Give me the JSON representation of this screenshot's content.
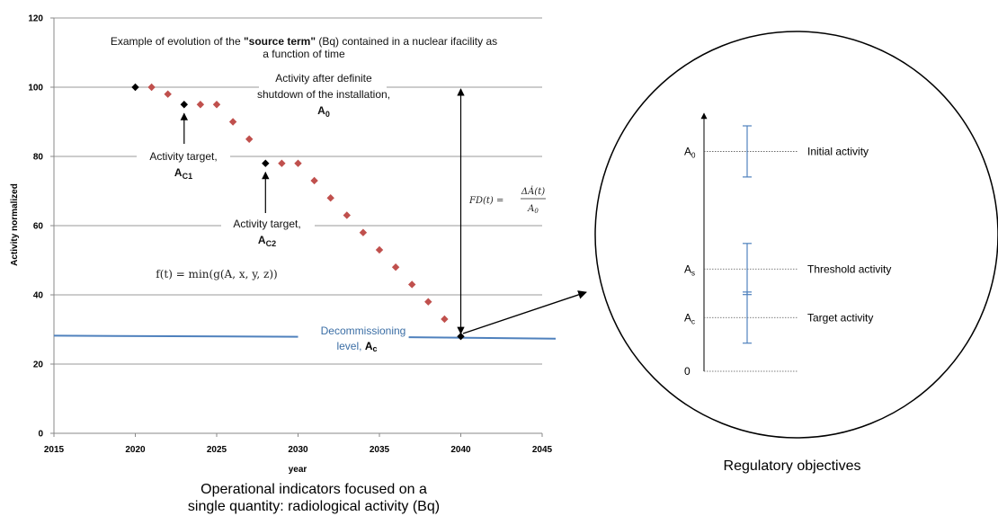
{
  "chart_data": {
    "type": "scatter",
    "xlabel": "year",
    "ylabel": "Activity normalized",
    "xlim": [
      2015,
      2045
    ],
    "ylim": [
      0,
      120
    ],
    "x_ticks": [
      "2015",
      "2020",
      "2025",
      "2030",
      "2035",
      "2040",
      "2045"
    ],
    "y_ticks": [
      "0",
      "20",
      "40",
      "60",
      "80",
      "100",
      "120"
    ],
    "grid": "horizontal",
    "series": [
      {
        "color": "#c0504d",
        "marker": "diamond",
        "x": [
          2021,
          2022,
          2024,
          2025,
          2026,
          2027,
          2029,
          2030,
          2031,
          2032,
          2033,
          2034,
          2035,
          2036,
          2037,
          2038,
          2039
        ],
        "y": [
          100,
          98,
          95,
          95,
          90,
          85,
          78,
          78,
          73,
          68,
          63,
          58,
          53,
          48,
          43,
          38,
          33
        ]
      },
      {
        "color": "#000000",
        "marker": "diamond",
        "x": [
          2020,
          2023,
          2028,
          2040
        ],
        "y": [
          100,
          95,
          78,
          28
        ]
      }
    ],
    "decommissioning_line": {
      "color": "#4f81bd",
      "y_start": 28.2,
      "y_end": 27.6
    },
    "annotations": {
      "title_pre": "Example of evolution of the ",
      "title_bold": "\"source term\"",
      "title_post": " (Bq) contained in a nuclear ifacility as",
      "title_line2": "a function of time",
      "a0_line1": "Activity after definite",
      "a0_line2": "shutdown of the installation,",
      "a0_sym": "A",
      "a0_sub": "0",
      "t1_line1": "Activity target,",
      "t1_sym": "A",
      "t1_sub": "C1",
      "t2_line1": "Activity target,",
      "t2_sym": "A",
      "t2_sub": "C2",
      "formula_f": "f(t) = min(g(A, x, y, z))",
      "fd_lhs": "FD(t) =",
      "fd_num": "ΔȦ(t)",
      "fd_den": "A",
      "fd_den_sub": "0",
      "decom_line1": "Decommissioning",
      "decom_line2": "level,",
      "decom_sym": "A",
      "decom_sub": "c"
    }
  },
  "right_panel": {
    "levels": [
      {
        "sym": "A",
        "sub": "0",
        "label": "Initial activity",
        "value": 4.3
      },
      {
        "sym": "A",
        "sub": "s",
        "label": "Threshold activity",
        "value": 2.0
      },
      {
        "sym": "A",
        "sub": "c",
        "label": "Target activity",
        "value": 1.05
      },
      {
        "sym": "0",
        "sub": "",
        "label": "",
        "value": 0
      }
    ],
    "error_bars": [
      {
        "center": 4.3,
        "half": 0.5
      },
      {
        "center": 2.0,
        "half": 0.5
      },
      {
        "center": 1.05,
        "half": 0.5
      }
    ],
    "bar_color": "#4f81bd",
    "caption": "Regulatory objectives"
  },
  "caption_left": {
    "line1": "Operational indicators focused on a",
    "line2": "single quantity: radiological activity (Bq)"
  }
}
